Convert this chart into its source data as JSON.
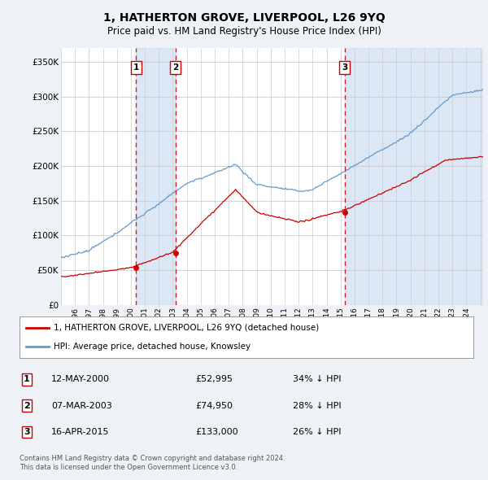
{
  "title": "1, HATHERTON GROVE, LIVERPOOL, L26 9YQ",
  "subtitle": "Price paid vs. HM Land Registry's House Price Index (HPI)",
  "ylabel_ticks": [
    "£0",
    "£50K",
    "£100K",
    "£150K",
    "£200K",
    "£250K",
    "£300K",
    "£350K"
  ],
  "ytick_vals": [
    0,
    50000,
    100000,
    150000,
    200000,
    250000,
    300000,
    350000
  ],
  "ylim": [
    0,
    370000
  ],
  "xlim_start": 1995.0,
  "xlim_end": 2025.2,
  "sale_color": "#cc0000",
  "hpi_color": "#6699cc",
  "sale_label": "1, HATHERTON GROVE, LIVERPOOL, L26 9YQ (detached house)",
  "hpi_label": "HPI: Average price, detached house, Knowsley",
  "transactions": [
    {
      "num": 1,
      "date": "12-MAY-2000",
      "year": 2000.37,
      "price": 52995,
      "pct": "34% ↓ HPI"
    },
    {
      "num": 2,
      "date": "07-MAR-2003",
      "year": 2003.18,
      "price": 74950,
      "pct": "28% ↓ HPI"
    },
    {
      "num": 3,
      "date": "16-APR-2015",
      "year": 2015.29,
      "price": 133000,
      "pct": "26% ↓ HPI"
    }
  ],
  "footnote1": "Contains HM Land Registry data © Crown copyright and database right 2024.",
  "footnote2": "This data is licensed under the Open Government Licence v3.0.",
  "bg_color": "#eef2f7",
  "plot_bg_color": "#ffffff",
  "grid_color": "#cccccc",
  "shade_color": "#ccddf0",
  "marker_box_color": "#cc0000",
  "xtick_years": [
    1996,
    1997,
    1998,
    1999,
    2000,
    2001,
    2002,
    2003,
    2004,
    2005,
    2006,
    2007,
    2008,
    2009,
    2010,
    2011,
    2012,
    2013,
    2014,
    2015,
    2016,
    2017,
    2018,
    2019,
    2020,
    2021,
    2022,
    2023,
    2024
  ]
}
